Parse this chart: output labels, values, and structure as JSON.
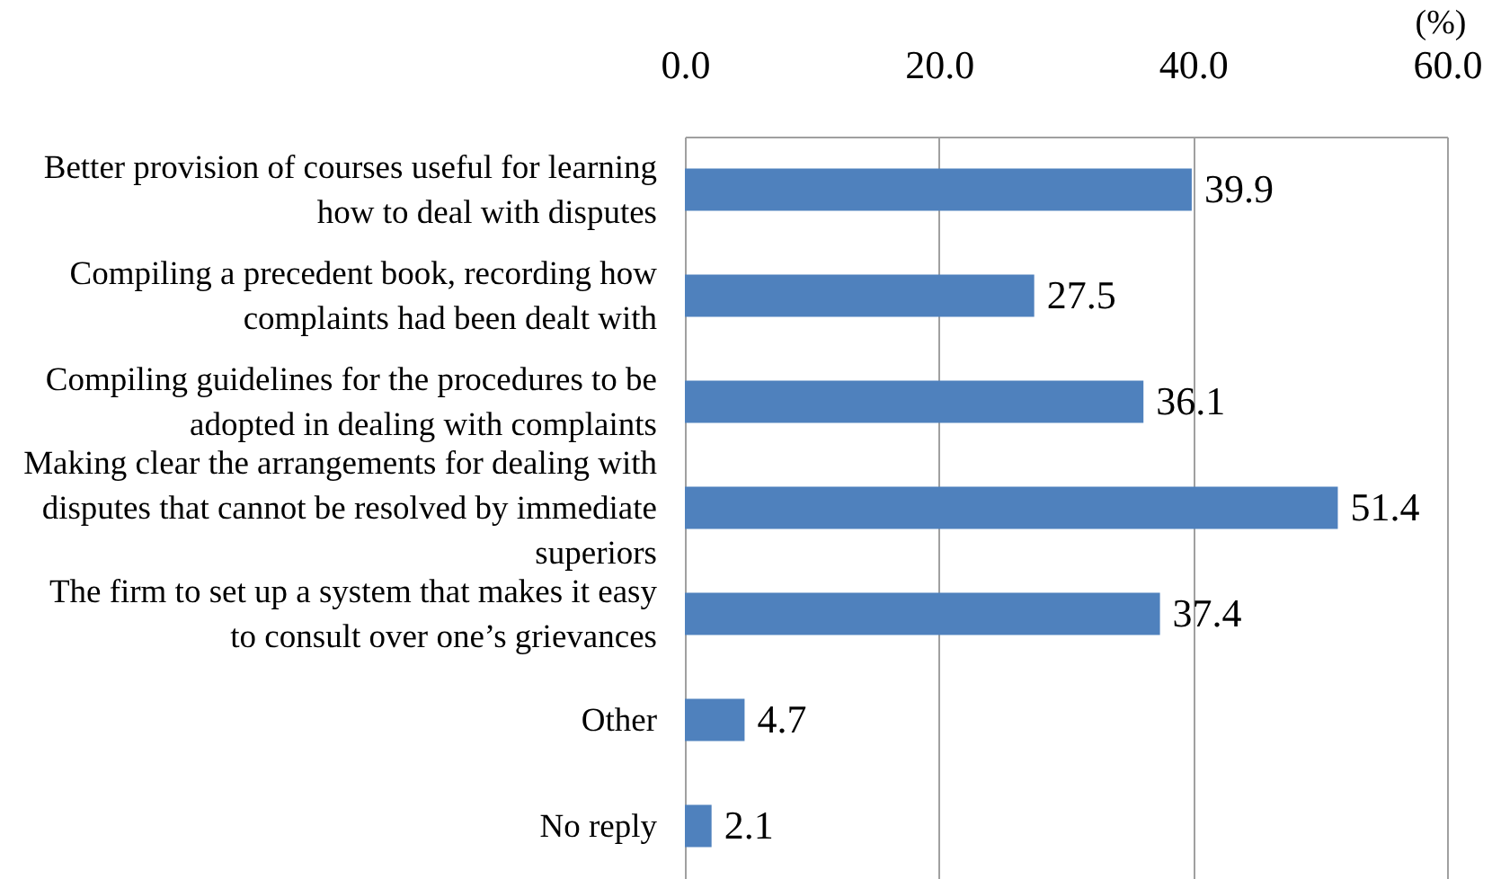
{
  "chart_data": {
    "type": "bar",
    "orientation": "horizontal",
    "xlabel": "(%)",
    "categories": [
      "Better provision of courses useful for learning how to deal with disputes",
      "Compiling a precedent book, recording how complaints had been dealt with",
      "Compiling guidelines for the procedures to be adopted in dealing with complaints",
      "Making clear the arrangements for dealing with disputes that cannot be resolved by immediate superiors",
      "The firm to set up a system that makes it easy to consult over one’s grievances",
      "Other",
      "No reply"
    ],
    "values": [
      39.9,
      27.5,
      36.1,
      51.4,
      37.4,
      4.7,
      2.1
    ],
    "color": "#4f81bd",
    "xlim": [
      0,
      60
    ],
    "xticks": [
      {
        "value": 0,
        "label": "0.0"
      },
      {
        "value": 20,
        "label": "20.0"
      },
      {
        "value": 40,
        "label": "40.0"
      },
      {
        "value": 60,
        "label": "60.0"
      }
    ],
    "grid": "x",
    "data_labels": true
  }
}
